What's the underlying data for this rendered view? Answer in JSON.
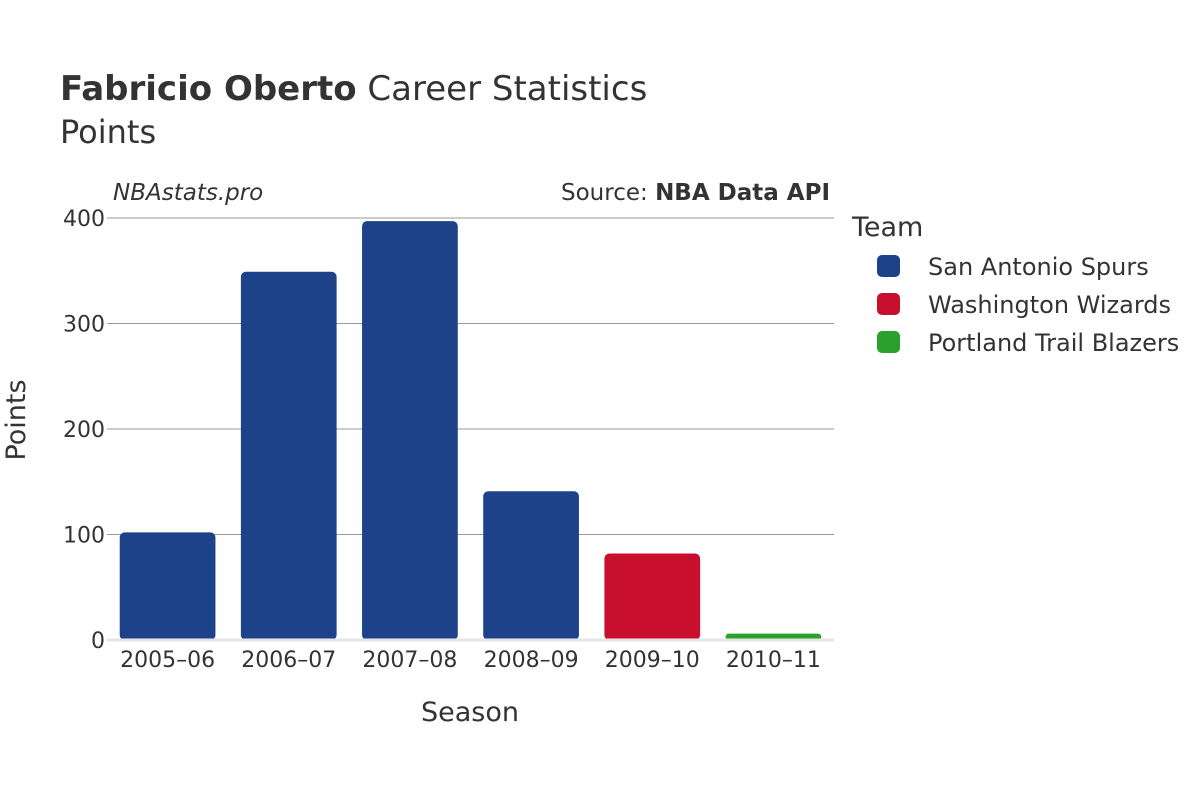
{
  "header": {
    "title_bold": "Fabricio Oberto",
    "title_rest": " Career Statistics",
    "subtitle": "Points"
  },
  "watermark": "NBAstats.pro",
  "source": {
    "prefix": "Source: ",
    "name": "NBA Data API"
  },
  "legend": {
    "title": "Team",
    "items": [
      {
        "label": "San Antonio Spurs",
        "color": "#1d428a"
      },
      {
        "label": "Washington Wizards",
        "color": "#c8102e"
      },
      {
        "label": "Portland Trail Blazers",
        "color": "#2ca02c"
      }
    ]
  },
  "chart_data": {
    "type": "bar",
    "categories": [
      "2005–06",
      "2006–07",
      "2007–08",
      "2008–09",
      "2009–10",
      "2010–11"
    ],
    "values": [
      102,
      349,
      397,
      141,
      82,
      6
    ],
    "teams": [
      "San Antonio Spurs",
      "San Antonio Spurs",
      "San Antonio Spurs",
      "San Antonio Spurs",
      "Washington Wizards",
      "Portland Trail Blazers"
    ],
    "xlabel": "Season",
    "ylabel": "Points",
    "ylim": [
      0,
      400
    ],
    "yticks": [
      0,
      100,
      200,
      300,
      400
    ],
    "grid": true,
    "legend_position": "right"
  }
}
